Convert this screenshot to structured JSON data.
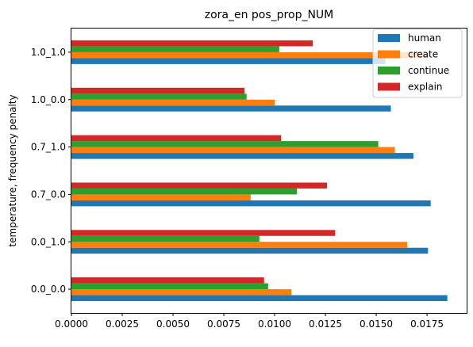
{
  "chart_data": {
    "type": "bar",
    "orientation": "horizontal",
    "title": "zora_en pos_prop_NUM",
    "xlabel": "",
    "ylabel": "temperature, frequency penalty",
    "categories": [
      "0.0_0.0",
      "0.0_1.0",
      "0.7_0.0",
      "0.7_1.0",
      "1.0_0.0",
      "1.0_1.0"
    ],
    "series": [
      {
        "name": "human",
        "color": "#1f77b4",
        "values": [
          0.0185,
          0.01755,
          0.01768,
          0.01683,
          0.01572,
          0.01545
        ]
      },
      {
        "name": "create",
        "color": "#ff7f0e",
        "values": [
          0.01082,
          0.01652,
          0.00882,
          0.01592,
          0.01001,
          0.01752
        ]
      },
      {
        "name": "continue",
        "color": "#2ca02c",
        "values": [
          0.00968,
          0.00925,
          0.0111,
          0.0151,
          0.00862,
          0.01023
        ]
      },
      {
        "name": "explain",
        "color": "#d62728",
        "values": [
          0.00948,
          0.01298,
          0.01258,
          0.01032,
          0.00852,
          0.01188
        ]
      }
    ],
    "xlim": [
      0,
      0.01945
    ],
    "xticks": [
      "0.0000",
      "0.0025",
      "0.0050",
      "0.0075",
      "0.0100",
      "0.0125",
      "0.0150",
      "0.0175"
    ],
    "xtick_values": [
      0,
      0.0025,
      0.005,
      0.0075,
      0.01,
      0.0125,
      0.015,
      0.0175
    ],
    "grid": false,
    "legend_position": "top-right"
  }
}
